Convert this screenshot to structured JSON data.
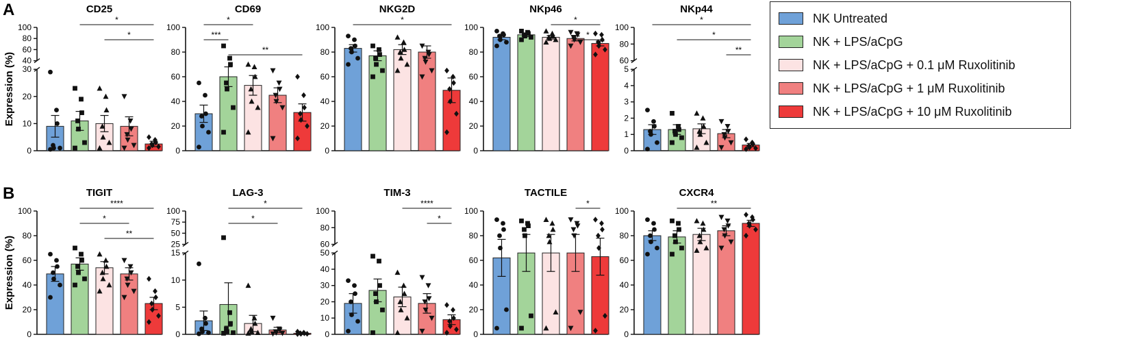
{
  "panel_labels": [
    "A",
    "B"
  ],
  "y_axis_label": "Expression (%)",
  "groups": [
    {
      "name": "NK Untreated",
      "color": "#6fa1d8"
    },
    {
      "name": "NK + LPS/aCpG",
      "color": "#a3d49a"
    },
    {
      "name": "NK + LPS/aCpG + 0.1 μM Ruxolitinib",
      "color": "#fce3e3"
    },
    {
      "name": "NK + LPS/aCpG + 1 μM Ruxolitinib",
      "color": "#f08080"
    },
    {
      "name": "NK + LPS/aCpG + 10 μM Ruxolitinib",
      "color": "#ee3a3a"
    }
  ],
  "chart_data": [
    {
      "type": "bar",
      "title": "CD25",
      "panel": "A",
      "ylabel": "Expression (%)",
      "axis": {
        "broken": true,
        "lower": [
          0,
          30
        ],
        "lower_ticks": [
          0,
          10,
          20,
          30
        ],
        "upper": [
          40,
          100
        ],
        "upper_ticks": [
          40,
          60,
          80,
          100
        ]
      },
      "means": [
        9,
        11,
        10,
        9,
        2.5
      ],
      "sems": [
        4,
        3.5,
        3,
        3.5,
        1
      ],
      "points": [
        [
          29,
          15,
          10,
          2,
          1,
          1,
          0.5
        ],
        [
          23,
          19,
          14,
          11,
          8,
          3,
          1
        ],
        [
          23,
          20,
          15,
          9,
          5,
          3,
          1
        ],
        [
          20,
          11,
          8,
          6,
          4,
          2,
          1
        ],
        [
          5,
          4,
          3,
          2.5,
          2,
          1.5,
          1
        ]
      ],
      "sig": [
        {
          "from": 1,
          "to": 4,
          "label": "*"
        },
        {
          "from": 2,
          "to": 4,
          "label": "*"
        }
      ]
    },
    {
      "type": "bar",
      "title": "CD69",
      "panel": "A",
      "ylabel": "Expression (%)",
      "axis": {
        "broken": false,
        "range": [
          0,
          100
        ],
        "ticks": [
          0,
          20,
          40,
          60,
          80,
          100
        ]
      },
      "means": [
        30,
        60,
        53,
        45,
        31
      ],
      "sems": [
        7,
        8,
        8,
        6,
        7
      ],
      "points": [
        [
          55,
          45,
          30,
          28,
          20,
          15,
          3
        ],
        [
          85,
          75,
          70,
          55,
          50,
          35,
          15
        ],
        [
          70,
          68,
          60,
          50,
          40,
          35,
          15
        ],
        [
          65,
          55,
          50,
          45,
          40,
          35,
          10
        ],
        [
          60,
          45,
          35,
          30,
          25,
          20,
          10
        ]
      ],
      "sig": [
        {
          "from": 0,
          "to": 2,
          "label": "*"
        },
        {
          "from": 0,
          "to": 1,
          "label": "***"
        },
        {
          "from": 1,
          "to": 4,
          "label": "**"
        }
      ]
    },
    {
      "type": "bar",
      "title": "NKG2D",
      "panel": "A",
      "ylabel": "Expression (%)",
      "axis": {
        "broken": false,
        "range": [
          0,
          100
        ],
        "ticks": [
          0,
          20,
          40,
          60,
          80,
          100
        ]
      },
      "means": [
        83,
        77,
        82,
        80,
        49
      ],
      "sems": [
        3,
        4,
        4,
        5,
        10
      ],
      "points": [
        [
          93,
          90,
          85,
          83,
          80,
          75,
          70
        ],
        [
          85,
          82,
          78,
          75,
          70,
          65,
          60
        ],
        [
          92,
          88,
          82,
          80,
          75,
          70,
          65
        ],
        [
          85,
          80,
          78,
          75,
          72,
          65,
          60
        ],
        [
          65,
          60,
          55,
          50,
          40,
          30,
          15
        ]
      ],
      "sig": [
        {
          "from": 0,
          "to": 4,
          "label": "*"
        }
      ]
    },
    {
      "type": "bar",
      "title": "NKp46",
      "panel": "A",
      "ylabel": "Expression (%)",
      "axis": {
        "broken": false,
        "range": [
          0,
          100
        ],
        "ticks": [
          0,
          20,
          40,
          60,
          80,
          100
        ]
      },
      "means": [
        92,
        94,
        92,
        91,
        87
      ],
      "sems": [
        2,
        1.5,
        1.5,
        2,
        2
      ],
      "points": [
        [
          97,
          95,
          94,
          93,
          90,
          88,
          85
        ],
        [
          97,
          96,
          95,
          94,
          93,
          92,
          90
        ],
        [
          97,
          95,
          93,
          92,
          91,
          90,
          88
        ],
        [
          96,
          95,
          94,
          92,
          90,
          88,
          85
        ],
        [
          95,
          94,
          90,
          88,
          85,
          82,
          78
        ]
      ],
      "sig": [
        {
          "from": 2,
          "to": 4,
          "label": "*"
        },
        {
          "from": 3,
          "to": 4,
          "label": "*"
        }
      ]
    },
    {
      "type": "bar",
      "title": "NKp44",
      "panel": "A",
      "ylabel": "Expression (%)",
      "axis": {
        "broken": true,
        "lower": [
          0,
          5
        ],
        "lower_ticks": [
          0,
          1,
          2,
          3,
          4,
          5
        ],
        "upper": [
          60,
          100
        ],
        "upper_ticks": [
          60,
          80,
          100
        ]
      },
      "means": [
        1.3,
        1.3,
        1.35,
        1.05,
        0.35
      ],
      "sems": [
        0.3,
        0.3,
        0.3,
        0.25,
        0.1
      ],
      "points": [
        [
          2.5,
          1.8,
          1.5,
          1.2,
          1,
          0.5,
          0.1
        ],
        [
          2.3,
          1.5,
          1.3,
          1.2,
          1,
          0.8,
          0.5
        ],
        [
          2.3,
          2,
          1.5,
          1.2,
          1,
          0.5,
          0.2
        ],
        [
          1.8,
          1.5,
          1.2,
          1,
          0.8,
          0.5,
          0.2
        ],
        [
          0.7,
          0.5,
          0.4,
          0.3,
          0.2,
          0.15,
          0.1
        ]
      ],
      "sig": [
        {
          "from": 0,
          "to": 4,
          "label": "*"
        },
        {
          "from": 1,
          "to": 4,
          "label": "*"
        },
        {
          "from": 3,
          "to": 4,
          "label": "**"
        }
      ]
    },
    {
      "type": "bar",
      "title": "TIGIT",
      "panel": "B",
      "ylabel": "Expression (%)",
      "axis": {
        "broken": false,
        "range": [
          0,
          100
        ],
        "ticks": [
          0,
          20,
          40,
          60,
          80,
          100
        ]
      },
      "means": [
        49,
        57,
        54,
        49,
        25
      ],
      "sems": [
        6,
        5,
        5,
        5,
        5
      ],
      "points": [
        [
          65,
          60,
          55,
          50,
          45,
          40,
          30
        ],
        [
          70,
          65,
          60,
          55,
          50,
          45,
          40
        ],
        [
          65,
          60,
          55,
          50,
          45,
          40,
          35
        ],
        [
          60,
          55,
          50,
          45,
          40,
          35,
          30
        ],
        [
          45,
          35,
          30,
          25,
          20,
          15,
          10
        ]
      ],
      "sig": [
        {
          "from": 1,
          "to": 4,
          "label": "****"
        },
        {
          "from": 1,
          "to": 3,
          "label": "*"
        },
        {
          "from": 2,
          "to": 4,
          "label": "**"
        }
      ]
    },
    {
      "type": "bar",
      "title": "LAG-3",
      "panel": "B",
      "ylabel": "Expression (%)",
      "axis": {
        "broken": true,
        "lower": [
          0,
          15
        ],
        "lower_ticks": [
          0,
          5,
          10,
          15
        ],
        "upper": [
          25,
          100
        ],
        "upper_ticks": [
          25,
          50,
          75,
          100
        ]
      },
      "means": [
        2.5,
        5.5,
        2,
        0.8,
        0.2
      ],
      "sems": [
        1.8,
        4,
        1.5,
        0.5,
        0.1
      ],
      "points": [
        [
          13,
          3,
          2,
          1,
          0.5,
          0.3,
          0.1
        ],
        [
          40,
          4,
          2,
          1,
          0.5,
          0.3,
          0.2
        ],
        [
          9,
          3,
          2,
          1,
          0.5,
          0.3,
          0.2
        ],
        [
          3,
          1,
          0.8,
          0.5,
          0.3,
          0.2,
          0.1
        ],
        [
          0.5,
          0.3,
          0.2,
          0.2,
          0.1,
          0.1,
          0.05
        ]
      ],
      "sig": [
        {
          "from": 1,
          "to": 4,
          "label": "*"
        },
        {
          "from": 1,
          "to": 3,
          "label": "*"
        }
      ]
    },
    {
      "type": "bar",
      "title": "TIM-3",
      "panel": "B",
      "ylabel": "Expression (%)",
      "axis": {
        "broken": true,
        "lower": [
          0,
          50
        ],
        "lower_ticks": [
          0,
          10,
          20,
          30,
          40,
          50
        ],
        "upper": [
          60,
          100
        ],
        "upper_ticks": [
          60,
          80,
          100
        ]
      },
      "means": [
        19,
        27,
        23,
        19,
        9
      ],
      "sems": [
        6,
        7,
        6,
        6,
        3
      ],
      "points": [
        [
          33,
          30,
          25,
          20,
          12,
          8,
          2
        ],
        [
          48,
          45,
          30,
          25,
          20,
          15,
          1
        ],
        [
          38,
          30,
          25,
          20,
          15,
          10,
          1
        ],
        [
          35,
          30,
          22,
          20,
          15,
          10,
          2
        ],
        [
          18,
          15,
          10,
          8,
          5,
          3,
          1
        ]
      ],
      "sig": [
        {
          "from": 2,
          "to": 4,
          "label": "****"
        },
        {
          "from": 3,
          "to": 4,
          "label": "*"
        }
      ]
    },
    {
      "type": "bar",
      "title": "TACTILE",
      "panel": "B",
      "ylabel": "Expression (%)",
      "axis": {
        "broken": false,
        "range": [
          0,
          100
        ],
        "ticks": [
          0,
          20,
          40,
          60,
          80,
          100
        ]
      },
      "means": [
        62,
        66,
        66,
        66,
        63
      ],
      "sems": [
        15,
        15,
        15,
        15,
        15
      ],
      "points": [
        [
          93,
          90,
          85,
          80,
          70,
          20,
          5
        ],
        [
          92,
          90,
          88,
          85,
          80,
          15,
          5
        ],
        [
          93,
          90,
          85,
          80,
          75,
          18,
          5
        ],
        [
          93,
          90,
          88,
          85,
          80,
          18,
          5
        ],
        [
          93,
          90,
          85,
          80,
          70,
          15,
          3
        ]
      ],
      "sig": [
        {
          "from": 3,
          "to": 4,
          "label": "*"
        }
      ]
    },
    {
      "type": "bar",
      "title": "CXCR4",
      "panel": "B",
      "ylabel": "Expression (%)",
      "axis": {
        "broken": false,
        "range": [
          0,
          100
        ],
        "ticks": [
          0,
          20,
          40,
          60,
          80,
          100
        ]
      },
      "means": [
        80,
        79,
        81,
        84,
        90
      ],
      "sems": [
        4,
        5,
        5,
        4,
        2.5
      ],
      "points": [
        [
          93,
          90,
          85,
          80,
          75,
          70,
          65
        ],
        [
          92,
          90,
          85,
          80,
          75,
          70,
          65
        ],
        [
          92,
          90,
          85,
          80,
          75,
          70,
          68
        ],
        [
          95,
          92,
          88,
          85,
          80,
          75,
          70
        ],
        [
          97,
          95,
          93,
          90,
          88,
          85,
          80
        ]
      ],
      "sig": [
        {
          "from": 1,
          "to": 4,
          "label": "**"
        }
      ]
    }
  ]
}
